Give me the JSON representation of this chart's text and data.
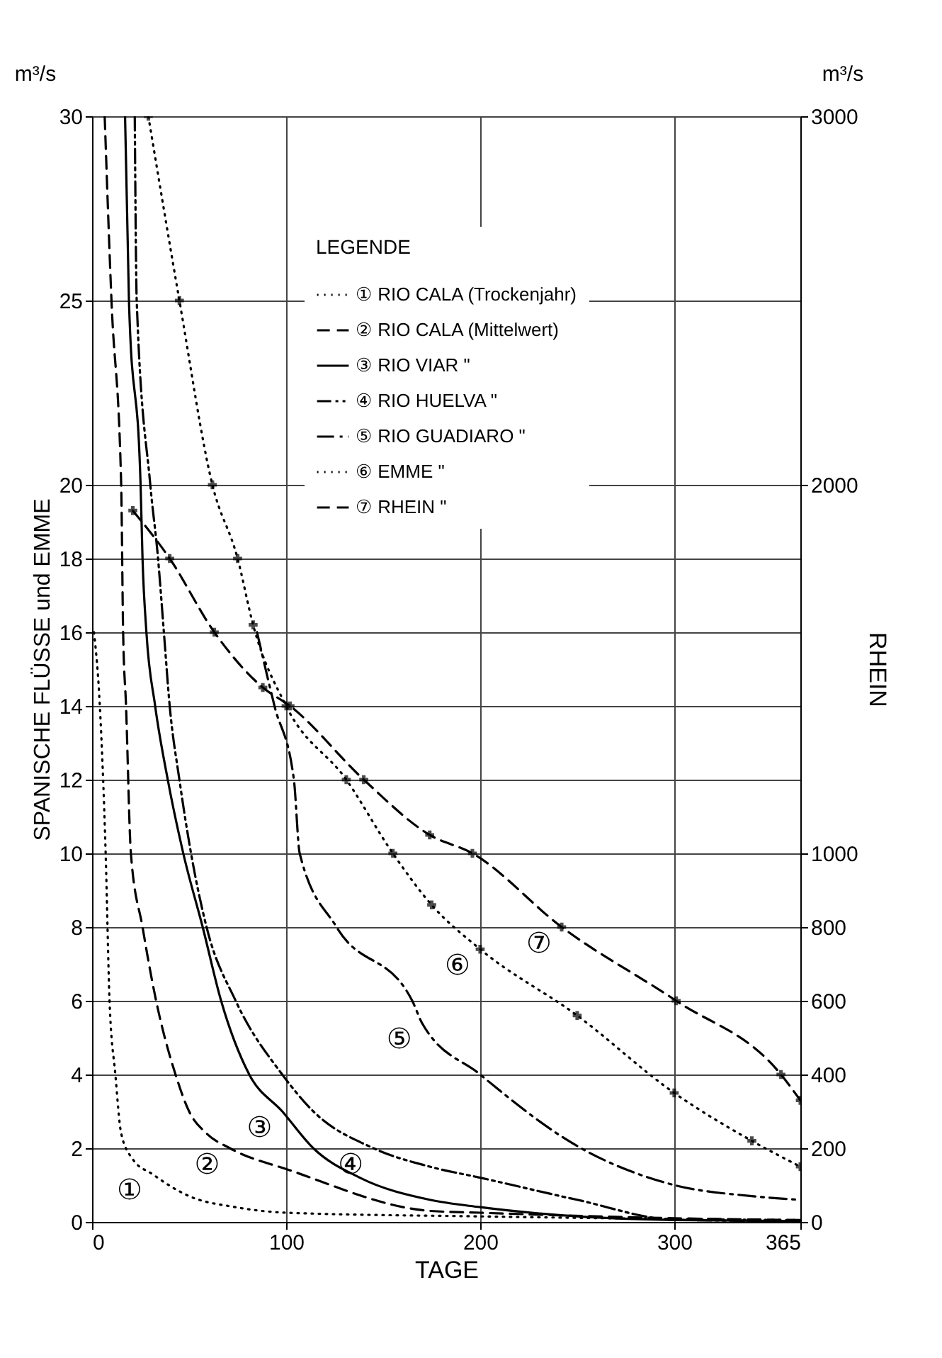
{
  "chart_data": {
    "type": "line",
    "xlabel": "TAGE",
    "ylabel": "SPANISCHE FLÜSSE und EMME",
    "y2label": "RHEIN",
    "legend_title": "LEGENDE",
    "legend": "top right",
    "grid": true,
    "xlim": [
      0,
      365
    ],
    "xticks": [
      0,
      100,
      200,
      300,
      365
    ],
    "ylim": [
      0,
      30
    ],
    "yticks": [
      0,
      2,
      4,
      6,
      8,
      10,
      12,
      14,
      16,
      18,
      20,
      25,
      30
    ],
    "y2lim": [
      0,
      3000
    ],
    "y2ticks": [
      0,
      200,
      400,
      600,
      800,
      1000,
      2000,
      3000
    ],
    "series": [
      {
        "name": "① RIO CALA (Trockenjahr)",
        "color": "#000000",
        "line_style": "dotted",
        "x": [
          1,
          4,
          7,
          9,
          12,
          15,
          21,
          31,
          50,
          74,
          100,
          200,
          300,
          365
        ],
        "values": [
          16,
          14,
          10,
          6,
          4,
          2.4,
          1.7,
          1.3,
          0.7,
          0.4,
          0.25,
          0.15,
          0.08,
          0.05
        ]
      },
      {
        "name": "② RIO CALA (Mittelwert)",
        "color": "#000000",
        "line_style": "dashed",
        "x": [
          6.5,
          10,
          15,
          16,
          17.5,
          20,
          26,
          33,
          43,
          50,
          59,
          71,
          102,
          174,
          200,
          300,
          365
        ],
        "values": [
          30,
          25,
          20,
          16,
          14,
          10,
          8,
          6,
          4,
          3,
          2.4,
          2,
          1.4,
          0.3,
          0.25,
          0.1,
          0.05
        ]
      },
      {
        "name": "③ RIO VIAR \"",
        "color": "#000000",
        "line_style": "solid",
        "x": [
          17,
          19,
          25,
          26,
          28,
          32.5,
          39,
          47,
          57,
          66.5,
          81,
          98,
          114,
          138,
          174,
          200,
          250,
          300,
          365
        ],
        "values": [
          30,
          25,
          20,
          18,
          16,
          14,
          12,
          10,
          8,
          6,
          4,
          3,
          2,
          1.2,
          0.6,
          0.4,
          0.15,
          0.05,
          0.02
        ]
      },
      {
        "name": "④ RIO HUELVA \"",
        "color": "#000000",
        "line_style": "dashdotdot",
        "x": [
          22,
          23,
          30,
          34,
          37,
          40,
          45,
          51,
          59,
          74,
          98,
          114,
          145,
          174,
          200,
          250,
          300,
          365
        ],
        "values": [
          30,
          25,
          20,
          18,
          16,
          14,
          12,
          10,
          8,
          6,
          4,
          3,
          2,
          1.5,
          1.2,
          0.6,
          0.06,
          0.02
        ]
      },
      {
        "name": "⑤ RIO GUADIARO \"",
        "color": "#000000",
        "line_style": "dashdot",
        "x": [
          85,
          94,
          104,
          107,
          126,
          165,
          170,
          200,
          252,
          300,
          340,
          365
        ],
        "values": [
          16,
          14,
          12,
          10,
          8,
          6,
          5.4,
          4,
          2,
          1,
          0.7,
          0.6
        ]
      },
      {
        "name": "⑥ EMME \"",
        "color": "#000000",
        "line_style": "dotted",
        "marker": "cross",
        "x": [
          29,
          45,
          62,
          75,
          83,
          100,
          131,
          155,
          175,
          200,
          250,
          300,
          340,
          365
        ],
        "values": [
          30,
          25,
          20,
          18,
          16.2,
          14,
          12,
          10,
          8.6,
          7.4,
          5.6,
          3.5,
          2.2,
          1.5
        ]
      },
      {
        "name": "⑦ RHEIN \"",
        "color": "#000000",
        "line_style": "dashed",
        "marker": "cross",
        "axis": "y2",
        "x": [
          21,
          40,
          63,
          88,
          102,
          140,
          174,
          196,
          242,
          301,
          355,
          365
        ],
        "values": [
          1930,
          1800,
          1600,
          1450,
          1400,
          1200,
          1050,
          1000,
          800,
          600,
          400,
          330
        ]
      }
    ],
    "annotations": [
      "m³/s",
      "m³/s",
      {
        "text": "①",
        "x": 31,
        "y": 1.3
      },
      {
        "text": "②",
        "x": 71,
        "y": 2
      },
      {
        "text": "③",
        "x": 98,
        "y": 3
      },
      {
        "text": "④",
        "x": 145,
        "y": 2
      },
      {
        "text": "⑤",
        "x": 170,
        "y": 5.4
      },
      {
        "text": "⑥",
        "x": 200,
        "y": 7.4
      },
      {
        "text": "⑦",
        "x": 242,
        "y": 8
      }
    ]
  }
}
